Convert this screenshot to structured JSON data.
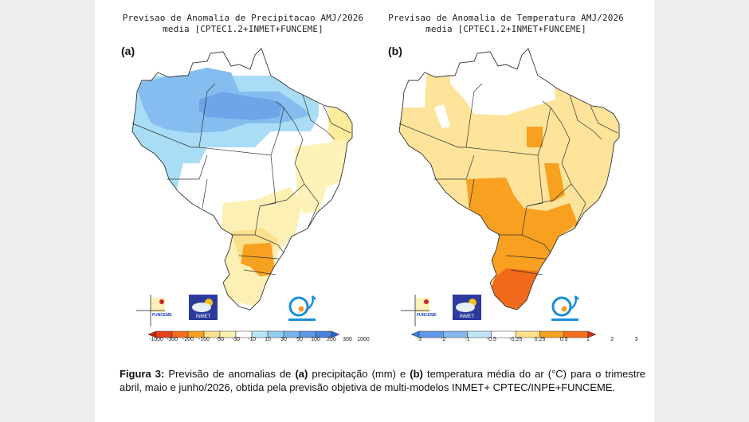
{
  "figure": {
    "panel_a": {
      "label": "(a)",
      "title_line1": "Previsao de Anomalia de Precipitacao AMJ/2026",
      "title_line2": "media [CPTEC1.2+INMET+FUNCEME]",
      "colorbar": {
        "unit": "mm",
        "ticks": [
          "-1000",
          "-300",
          "-200",
          "-100",
          "-50",
          "-30",
          "-10",
          "10",
          "30",
          "50",
          "100",
          "200",
          "300",
          "1000"
        ],
        "colors": [
          "#c81e14",
          "#e8421c",
          "#f46e1e",
          "#f8a020",
          "#fce08a",
          "#fcf0b0",
          "#ffffff",
          "#b8e6f4",
          "#94cef0",
          "#78b4ec",
          "#5c98e4",
          "#4a80dc",
          "#2c60c8"
        ]
      },
      "regions": [
        {
          "name": "north-amazon",
          "category": "10 to 50",
          "color": "#9fd3f3"
        },
        {
          "name": "north-central",
          "category": "50 to 100",
          "color": "#7fb2ea"
        },
        {
          "name": "northeast-coast",
          "category": "-30 to -10",
          "color": "#fcefb0"
        },
        {
          "name": "center-west",
          "category": "-10 to 10",
          "color": "#ffffff"
        },
        {
          "name": "south-parana",
          "category": "-100 to -50",
          "color": "#f79b1d"
        },
        {
          "name": "south-rs",
          "category": "-50 to -30",
          "color": "#fbe1a0"
        }
      ]
    },
    "panel_b": {
      "label": "(b)",
      "title_line1": "Previsao de Anomalia de Temperatura AMJ/2026",
      "title_line2": "media [CPTEC1.2+INMET+FUNCEME]",
      "colorbar": {
        "unit": "°C",
        "ticks": [
          "-3",
          "-2",
          "-1",
          "-0.5",
          "-0.25",
          "0.25",
          "0.5",
          "1",
          "2",
          "3"
        ],
        "colors": [
          "#3c7ee0",
          "#5e9ae8",
          "#86b8ee",
          "#bfe4f6",
          "#ffffff",
          "#fce08a",
          "#f8a020",
          "#f46e1e",
          "#d8281a"
        ]
      },
      "regions": [
        {
          "name": "north-white",
          "category": "-0.25 to 0.25",
          "color": "#ffffff"
        },
        {
          "name": "most-brazil",
          "category": "0.25 to 0.5",
          "color": "#fde49a"
        },
        {
          "name": "center-south",
          "category": "0.5 to 1",
          "color": "#f89b1b"
        },
        {
          "name": "rio-grande-do-sul",
          "category": "1 to 2",
          "color": "#f26a1b"
        }
      ]
    },
    "logos": [
      "FUNCEME",
      "INMET",
      "INPE"
    ],
    "caption": {
      "label": "Figura 3:",
      "part1": " Previsão de anomalias de ",
      "a": "(a)",
      "part2": " precipitação (mm) e ",
      "b": "(b)",
      "part3": " temperatura média do ar (°C) para o trimestre abril, maio e junho/2026, obtida pela previsão objetiva de multi-modelos INMET+ CPTEC/INPE+FUNCEME."
    }
  }
}
